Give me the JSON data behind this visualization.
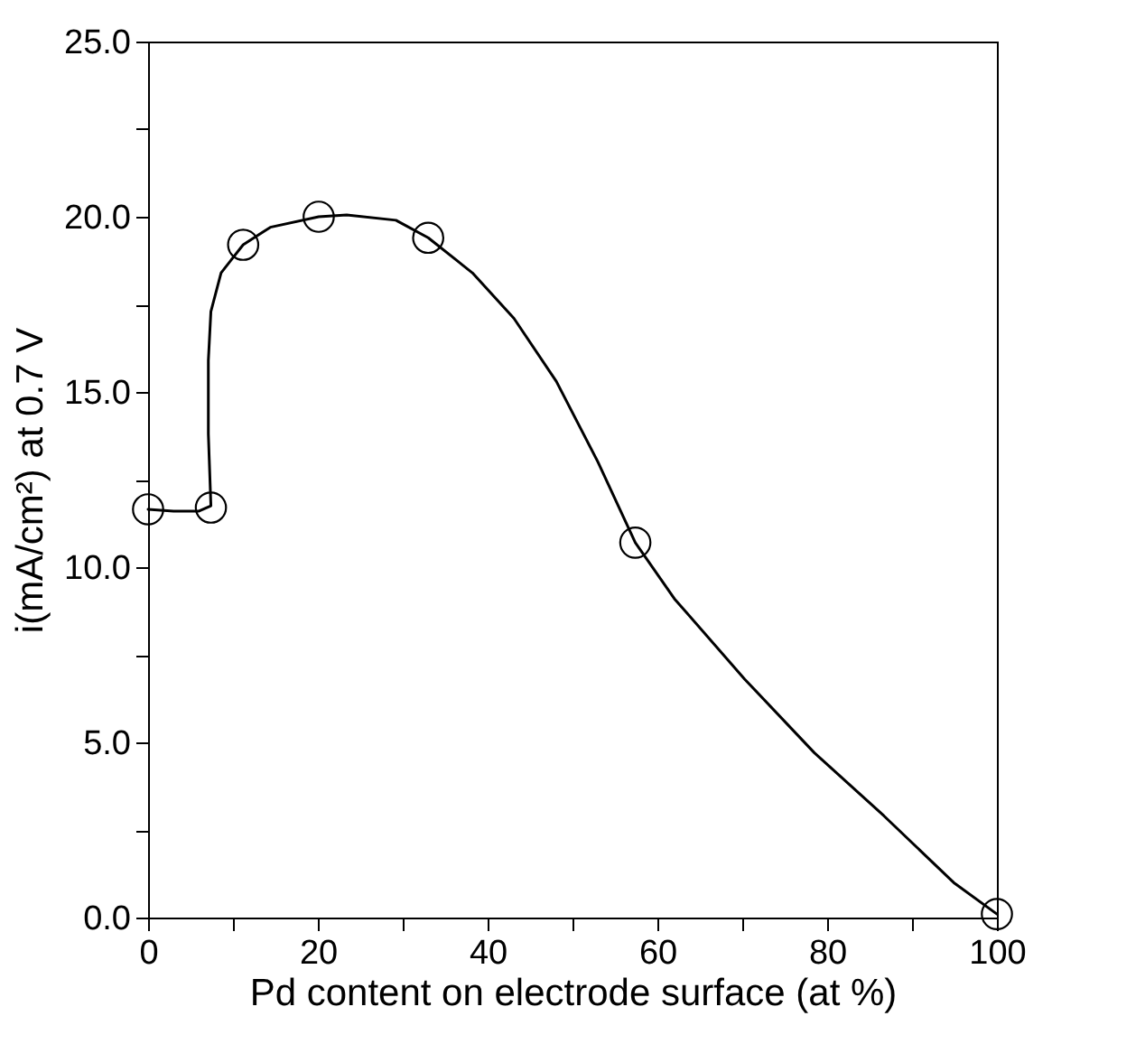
{
  "chart_data": {
    "type": "scatter",
    "xlabel": "Pd content on electrode surface (at %)",
    "ylabel": "i(mA/cm²) at 0.7 V",
    "grid": false,
    "xlim": [
      0,
      100
    ],
    "ylim": [
      0,
      25
    ],
    "xticks": [
      0,
      {
        "value": 10,
        "label": null
      },
      20,
      {
        "value": 30,
        "label": null
      },
      40,
      {
        "value": 50,
        "label": null
      },
      60,
      {
        "value": 70,
        "label": null
      },
      80,
      {
        "value": 90,
        "label": null
      },
      100
    ],
    "yticks": [
      {
        "value": 0,
        "label": "0.0"
      },
      {
        "value": 2.5,
        "label": null
      },
      {
        "value": 5,
        "label": "5.0"
      },
      {
        "value": 7.5,
        "label": null
      },
      {
        "value": 10,
        "label": "10.0"
      },
      {
        "value": 12.5,
        "label": null
      },
      {
        "value": 15,
        "label": "15.0"
      },
      {
        "value": 17.5,
        "label": null
      },
      {
        "value": 20,
        "label": "20.0"
      },
      {
        "value": 22.5,
        "label": null
      },
      {
        "value": 25,
        "label": "25.0"
      }
    ],
    "series": [
      {
        "type": "line",
        "color": "#000000",
        "marker": "none",
        "line_style": "solid",
        "x": [
          0,
          3,
          6,
          7.4,
          7.1,
          7.1,
          7.4,
          8.6,
          11.2,
          14.4,
          20.1,
          23.4,
          29.2,
          33,
          38.2,
          43.1,
          48.1,
          53,
          57.4,
          62,
          70.3,
          78.5,
          86.7,
          94.9,
          100
        ],
        "values": [
          11.65,
          11.6,
          11.6,
          11.75,
          13.8,
          15.9,
          17.3,
          18.4,
          19.2,
          19.7,
          20.0,
          20.05,
          19.9,
          19.4,
          18.4,
          17.1,
          15.3,
          13.0,
          10.7,
          9.1,
          6.8,
          4.7,
          2.9,
          1.0,
          0.1
        ]
      },
      {
        "color": "#000000",
        "marker": "circle",
        "x": [
          0,
          7.4,
          11.2,
          20.1,
          33,
          57.4,
          100
        ],
        "values": [
          11.65,
          11.7,
          19.2,
          20.0,
          19.4,
          10.7,
          0.1
        ]
      }
    ]
  }
}
